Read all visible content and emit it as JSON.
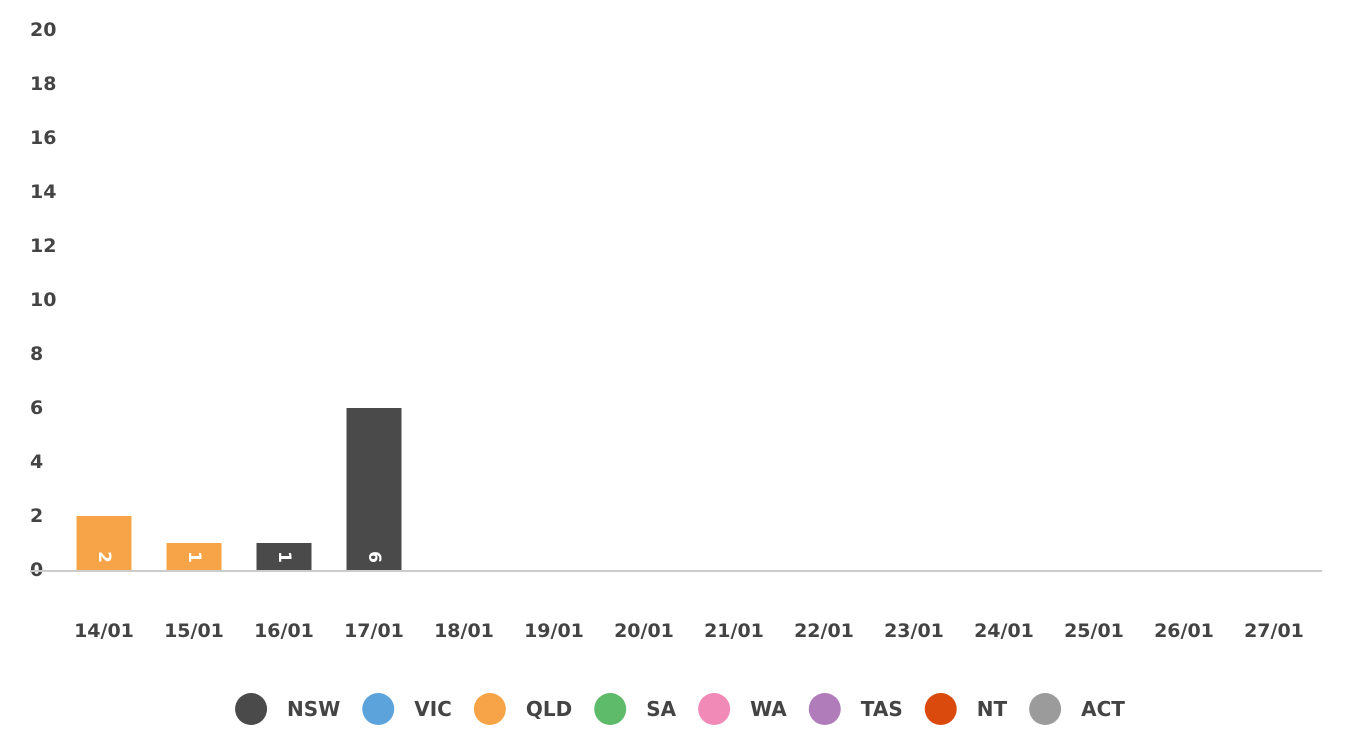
{
  "chart_data": {
    "type": "bar",
    "stacked": true,
    "categories": [
      "14/01",
      "15/01",
      "16/01",
      "17/01",
      "18/01",
      "19/01",
      "20/01",
      "21/01",
      "22/01",
      "23/01",
      "24/01",
      "25/01",
      "26/01",
      "27/01"
    ],
    "series": [
      {
        "name": "NSW",
        "color": "#4a4a4a",
        "values": [
          0,
          0,
          1,
          6,
          0,
          0,
          0,
          0,
          0,
          0,
          0,
          0,
          0,
          0
        ]
      },
      {
        "name": "VIC",
        "color": "#5ca3db",
        "values": [
          0,
          0,
          0,
          0,
          0,
          0,
          0,
          0,
          0,
          0,
          0,
          0,
          0,
          0
        ]
      },
      {
        "name": "QLD",
        "color": "#f7a448",
        "values": [
          2,
          1,
          0,
          0,
          0,
          0,
          0,
          0,
          0,
          0,
          0,
          0,
          0,
          0
        ]
      },
      {
        "name": "SA",
        "color": "#5ebb6a",
        "values": [
          0,
          0,
          0,
          0,
          0,
          0,
          0,
          0,
          0,
          0,
          0,
          0,
          0,
          0
        ]
      },
      {
        "name": "WA",
        "color": "#f28ab8",
        "values": [
          0,
          0,
          0,
          0,
          0,
          0,
          0,
          0,
          0,
          0,
          0,
          0,
          0,
          0
        ]
      },
      {
        "name": "TAS",
        "color": "#b07cba",
        "values": [
          0,
          0,
          0,
          0,
          0,
          0,
          0,
          0,
          0,
          0,
          0,
          0,
          0,
          0
        ]
      },
      {
        "name": "NT",
        "color": "#d94a0c",
        "values": [
          0,
          0,
          0,
          0,
          0,
          0,
          0,
          0,
          0,
          0,
          0,
          0,
          0,
          0
        ]
      },
      {
        "name": "ACT",
        "color": "#9b9b9b",
        "values": [
          0,
          0,
          0,
          0,
          0,
          0,
          0,
          0,
          0,
          0,
          0,
          0,
          0,
          0
        ]
      }
    ],
    "y_ticks": [
      "0",
      "2",
      "4",
      "6",
      "8",
      "10",
      "12",
      "14",
      "16",
      "18",
      "20"
    ],
    "ylim": [
      0,
      20
    ],
    "title": "",
    "xlabel": "",
    "ylabel": "",
    "grid": false,
    "legend_position": "bottom-center",
    "data_labels": true,
    "data_label_rotation": "vertical"
  }
}
